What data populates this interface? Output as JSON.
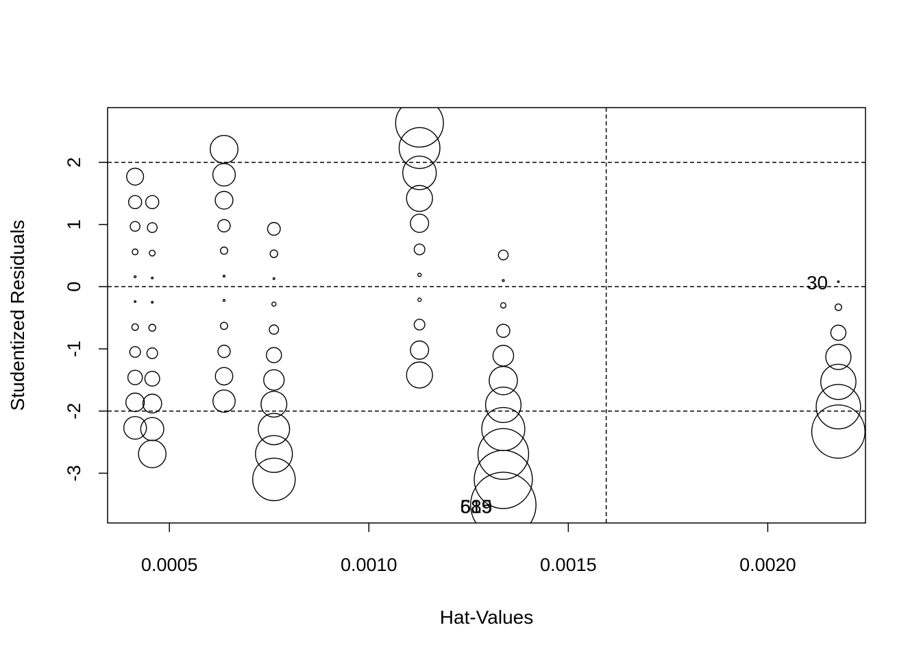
{
  "chart_data": {
    "type": "scatter",
    "title": "",
    "xlabel": "Hat-Values",
    "ylabel": "Studentized Residuals",
    "xlim": [
      0.000345,
      0.002245
    ],
    "ylim": [
      -3.8,
      2.88
    ],
    "x_ticks": [
      {
        "value": 0.0005,
        "label": "0.0005"
      },
      {
        "value": 0.001,
        "label": "0.0010"
      },
      {
        "value": 0.0015,
        "label": "0.0015"
      },
      {
        "value": 0.002,
        "label": "0.0020"
      }
    ],
    "y_ticks": [
      {
        "value": -3,
        "label": "-3"
      },
      {
        "value": -2,
        "label": "-2"
      },
      {
        "value": -1,
        "label": "-1"
      },
      {
        "value": 0,
        "label": "0"
      },
      {
        "value": 1,
        "label": "1"
      },
      {
        "value": 2,
        "label": "2"
      }
    ],
    "reference_lines": {
      "horizontal": [
        -2,
        0,
        2
      ],
      "vertical": [
        0.001595
      ],
      "style": "dashed"
    },
    "bubble_size_note": "circle area proportional to Cook's distance (relative scale)",
    "points": [
      {
        "x": 0.000414,
        "y": 1.77,
        "size": 0.3
      },
      {
        "x": 0.000414,
        "y": 1.36,
        "size": 0.18
      },
      {
        "x": 0.000414,
        "y": 0.97,
        "size": 0.1
      },
      {
        "x": 0.000414,
        "y": 0.56,
        "size": 0.035
      },
      {
        "x": 0.000414,
        "y": 0.16,
        "size": 0.004
      },
      {
        "x": 0.000414,
        "y": -0.24,
        "size": 0.003
      },
      {
        "x": 0.000414,
        "y": -0.65,
        "size": 0.045
      },
      {
        "x": 0.000414,
        "y": -1.05,
        "size": 0.12
      },
      {
        "x": 0.000414,
        "y": -1.46,
        "size": 0.22
      },
      {
        "x": 0.000414,
        "y": -1.86,
        "size": 0.36
      },
      {
        "x": 0.000414,
        "y": -2.27,
        "size": 0.54
      },
      {
        "x": 0.000457,
        "y": 1.36,
        "size": 0.18
      },
      {
        "x": 0.000457,
        "y": 0.95,
        "size": 0.1
      },
      {
        "x": 0.000457,
        "y": 0.54,
        "size": 0.035
      },
      {
        "x": 0.000457,
        "y": 0.14,
        "size": 0.003
      },
      {
        "x": 0.000457,
        "y": -0.25,
        "size": 0.003
      },
      {
        "x": 0.000457,
        "y": -0.66,
        "size": 0.05
      },
      {
        "x": 0.000457,
        "y": -1.07,
        "size": 0.12
      },
      {
        "x": 0.000457,
        "y": -1.48,
        "size": 0.23
      },
      {
        "x": 0.000457,
        "y": -1.88,
        "size": 0.37
      },
      {
        "x": 0.000457,
        "y": -2.29,
        "size": 0.56
      },
      {
        "x": 0.000457,
        "y": -2.69,
        "size": 0.8
      },
      {
        "x": 0.000637,
        "y": 2.21,
        "size": 0.81
      },
      {
        "x": 0.000637,
        "y": 1.8,
        "size": 0.53
      },
      {
        "x": 0.000637,
        "y": 1.39,
        "size": 0.33
      },
      {
        "x": 0.000637,
        "y": 0.98,
        "size": 0.16
      },
      {
        "x": 0.000637,
        "y": 0.58,
        "size": 0.055
      },
      {
        "x": 0.000637,
        "y": 0.17,
        "size": 0.004
      },
      {
        "x": 0.000637,
        "y": -0.22,
        "size": 0.004
      },
      {
        "x": 0.000637,
        "y": -0.63,
        "size": 0.055
      },
      {
        "x": 0.000637,
        "y": -1.04,
        "size": 0.16
      },
      {
        "x": 0.000637,
        "y": -1.44,
        "size": 0.32
      },
      {
        "x": 0.000637,
        "y": -1.84,
        "size": 0.52
      },
      {
        "x": 0.000762,
        "y": 0.93,
        "size": 0.17
      },
      {
        "x": 0.000762,
        "y": 0.53,
        "size": 0.06
      },
      {
        "x": 0.000762,
        "y": 0.13,
        "size": 0.003
      },
      {
        "x": 0.000762,
        "y": -0.28,
        "size": 0.018
      },
      {
        "x": 0.000762,
        "y": -0.69,
        "size": 0.09
      },
      {
        "x": 0.000762,
        "y": -1.1,
        "size": 0.24
      },
      {
        "x": 0.000762,
        "y": -1.5,
        "size": 0.44
      },
      {
        "x": 0.000762,
        "y": -1.89,
        "size": 0.7
      },
      {
        "x": 0.000762,
        "y": -2.29,
        "size": 1.03
      },
      {
        "x": 0.000762,
        "y": -2.69,
        "size": 1.43
      },
      {
        "x": 0.000762,
        "y": -3.1,
        "size": 1.9
      },
      {
        "x": 0.001127,
        "y": 2.63,
        "size": 2.4
      },
      {
        "x": 0.001127,
        "y": 2.23,
        "size": 1.75
      },
      {
        "x": 0.001127,
        "y": 1.83,
        "size": 1.18
      },
      {
        "x": 0.001127,
        "y": 1.42,
        "size": 0.71
      },
      {
        "x": 0.001127,
        "y": 1.02,
        "size": 0.35
      },
      {
        "x": 0.001127,
        "y": 0.6,
        "size": 0.12
      },
      {
        "x": 0.001127,
        "y": 0.19,
        "size": 0.012
      },
      {
        "x": 0.001127,
        "y": -0.21,
        "size": 0.012
      },
      {
        "x": 0.001127,
        "y": -0.61,
        "size": 0.12
      },
      {
        "x": 0.001127,
        "y": -1.02,
        "size": 0.35
      },
      {
        "x": 0.001127,
        "y": -1.42,
        "size": 0.71
      },
      {
        "x": 0.001337,
        "y": 0.51,
        "size": 0.1
      },
      {
        "x": 0.001337,
        "y": 0.1,
        "size": 0.004
      },
      {
        "x": 0.001337,
        "y": -0.3,
        "size": 0.03
      },
      {
        "x": 0.001337,
        "y": -0.71,
        "size": 0.18
      },
      {
        "x": 0.001337,
        "y": -1.11,
        "size": 0.45
      },
      {
        "x": 0.001337,
        "y": -1.51,
        "size": 0.84
      },
      {
        "x": 0.001337,
        "y": -1.9,
        "size": 1.32
      },
      {
        "x": 0.001337,
        "y": -2.29,
        "size": 1.95
      },
      {
        "x": 0.001337,
        "y": -2.69,
        "size": 2.7
      },
      {
        "x": 0.001337,
        "y": -3.1,
        "size": 3.55
      },
      {
        "x": 0.001337,
        "y": -3.51,
        "size": 4.5
      },
      {
        "x": 0.002177,
        "y": 0.08,
        "size": 0.003
      },
      {
        "x": 0.002177,
        "y": -0.33,
        "size": 0.045
      },
      {
        "x": 0.002177,
        "y": -0.74,
        "size": 0.24
      },
      {
        "x": 0.002177,
        "y": -1.13,
        "size": 0.67
      },
      {
        "x": 0.002177,
        "y": -1.53,
        "size": 1.3
      },
      {
        "x": 0.002177,
        "y": -1.93,
        "size": 2.07
      },
      {
        "x": 0.002177,
        "y": -2.33,
        "size": 2.98
      }
    ],
    "annotations": [
      {
        "text": "30",
        "x": 0.002124,
        "y": 0.04
      },
      {
        "text": "585",
        "x": 0.001269,
        "y": -3.56
      },
      {
        "text": "619",
        "x": 0.001269,
        "y": -3.56
      }
    ]
  }
}
